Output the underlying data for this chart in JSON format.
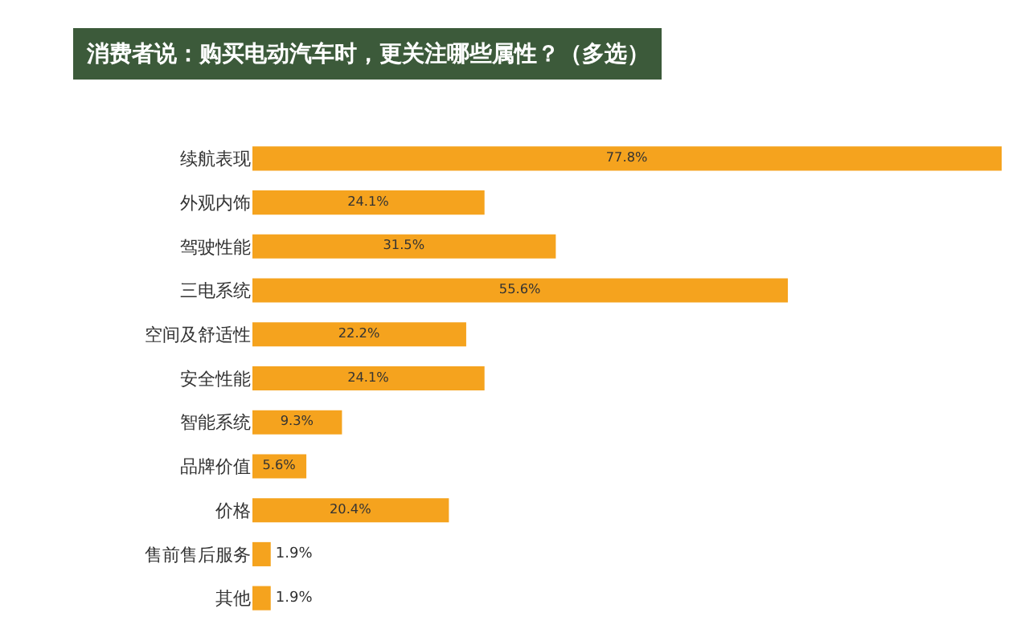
{
  "chart_data": {
    "type": "bar",
    "orientation": "horizontal",
    "title": "消费者说：购买电动汽车时，更关注哪些属性？（多选）",
    "categories": [
      "续航表现",
      "外观内饰",
      "驾驶性能",
      "三电系统",
      "空间及舒适性",
      "安全性能",
      "智能系统",
      "品牌价值",
      "价格",
      "售前售后服务",
      "其他"
    ],
    "values": [
      77.8,
      24.1,
      31.5,
      55.6,
      22.2,
      24.1,
      9.3,
      5.6,
      20.4,
      1.9,
      1.9
    ],
    "value_labels": [
      "77.8%",
      "24.1%",
      "31.5%",
      "55.6%",
      "22.2%",
      "24.1%",
      "9.3%",
      "5.6%",
      "20.4%",
      "1.9%",
      "1.9%"
    ],
    "color": "#f5a31e",
    "legend": false
  }
}
